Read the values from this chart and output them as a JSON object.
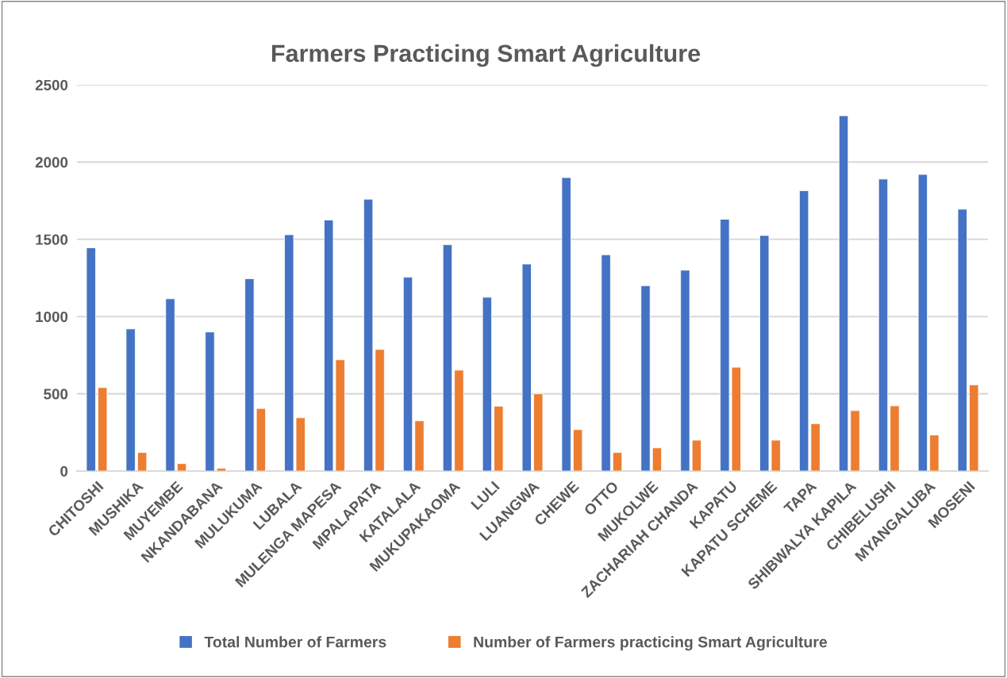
{
  "chart_data": {
    "type": "bar",
    "title": "Farmers Practicing Smart Agriculture",
    "categories": [
      "CHITOSHI",
      "MUSHIKA",
      "MUYEMBE",
      "NKANDABANA",
      "MULUKUMA",
      "LUBALA",
      "MULENGA MAPESA",
      "MPALAPATA",
      "KATALALA",
      "MUKUPAKAOMA",
      "LULI",
      "LUANGWA",
      "CHEWE",
      "OTTO",
      "MUKOLWE",
      "ZACHARIAH CHANDA",
      "KAPATU",
      "KAPATU SCHEME",
      "TAPA",
      "SHIBWALYA KAPILA",
      "CHIBELUSHI",
      "MYANGALUBA",
      "MOSENI"
    ],
    "series": [
      {
        "name": "Total Number of Farmers",
        "color": "#4472c4",
        "values": [
          1445,
          920,
          1115,
          900,
          1245,
          1530,
          1625,
          1760,
          1255,
          1465,
          1125,
          1340,
          1900,
          1400,
          1200,
          1300,
          1630,
          1525,
          1815,
          2300,
          1890,
          1920,
          1695
        ]
      },
      {
        "name": "Number of Farmers practicing Smart Agriculture",
        "color": "#ed7d31",
        "values": [
          540,
          120,
          48,
          18,
          405,
          345,
          720,
          787,
          325,
          653,
          420,
          500,
          268,
          120,
          150,
          200,
          672,
          200,
          307,
          391,
          422,
          233,
          558
        ]
      }
    ],
    "ylim": [
      0,
      2500
    ],
    "yticks": [
      0,
      500,
      1000,
      1500,
      2000,
      2500
    ],
    "grid": "y",
    "legend": "bottom"
  }
}
